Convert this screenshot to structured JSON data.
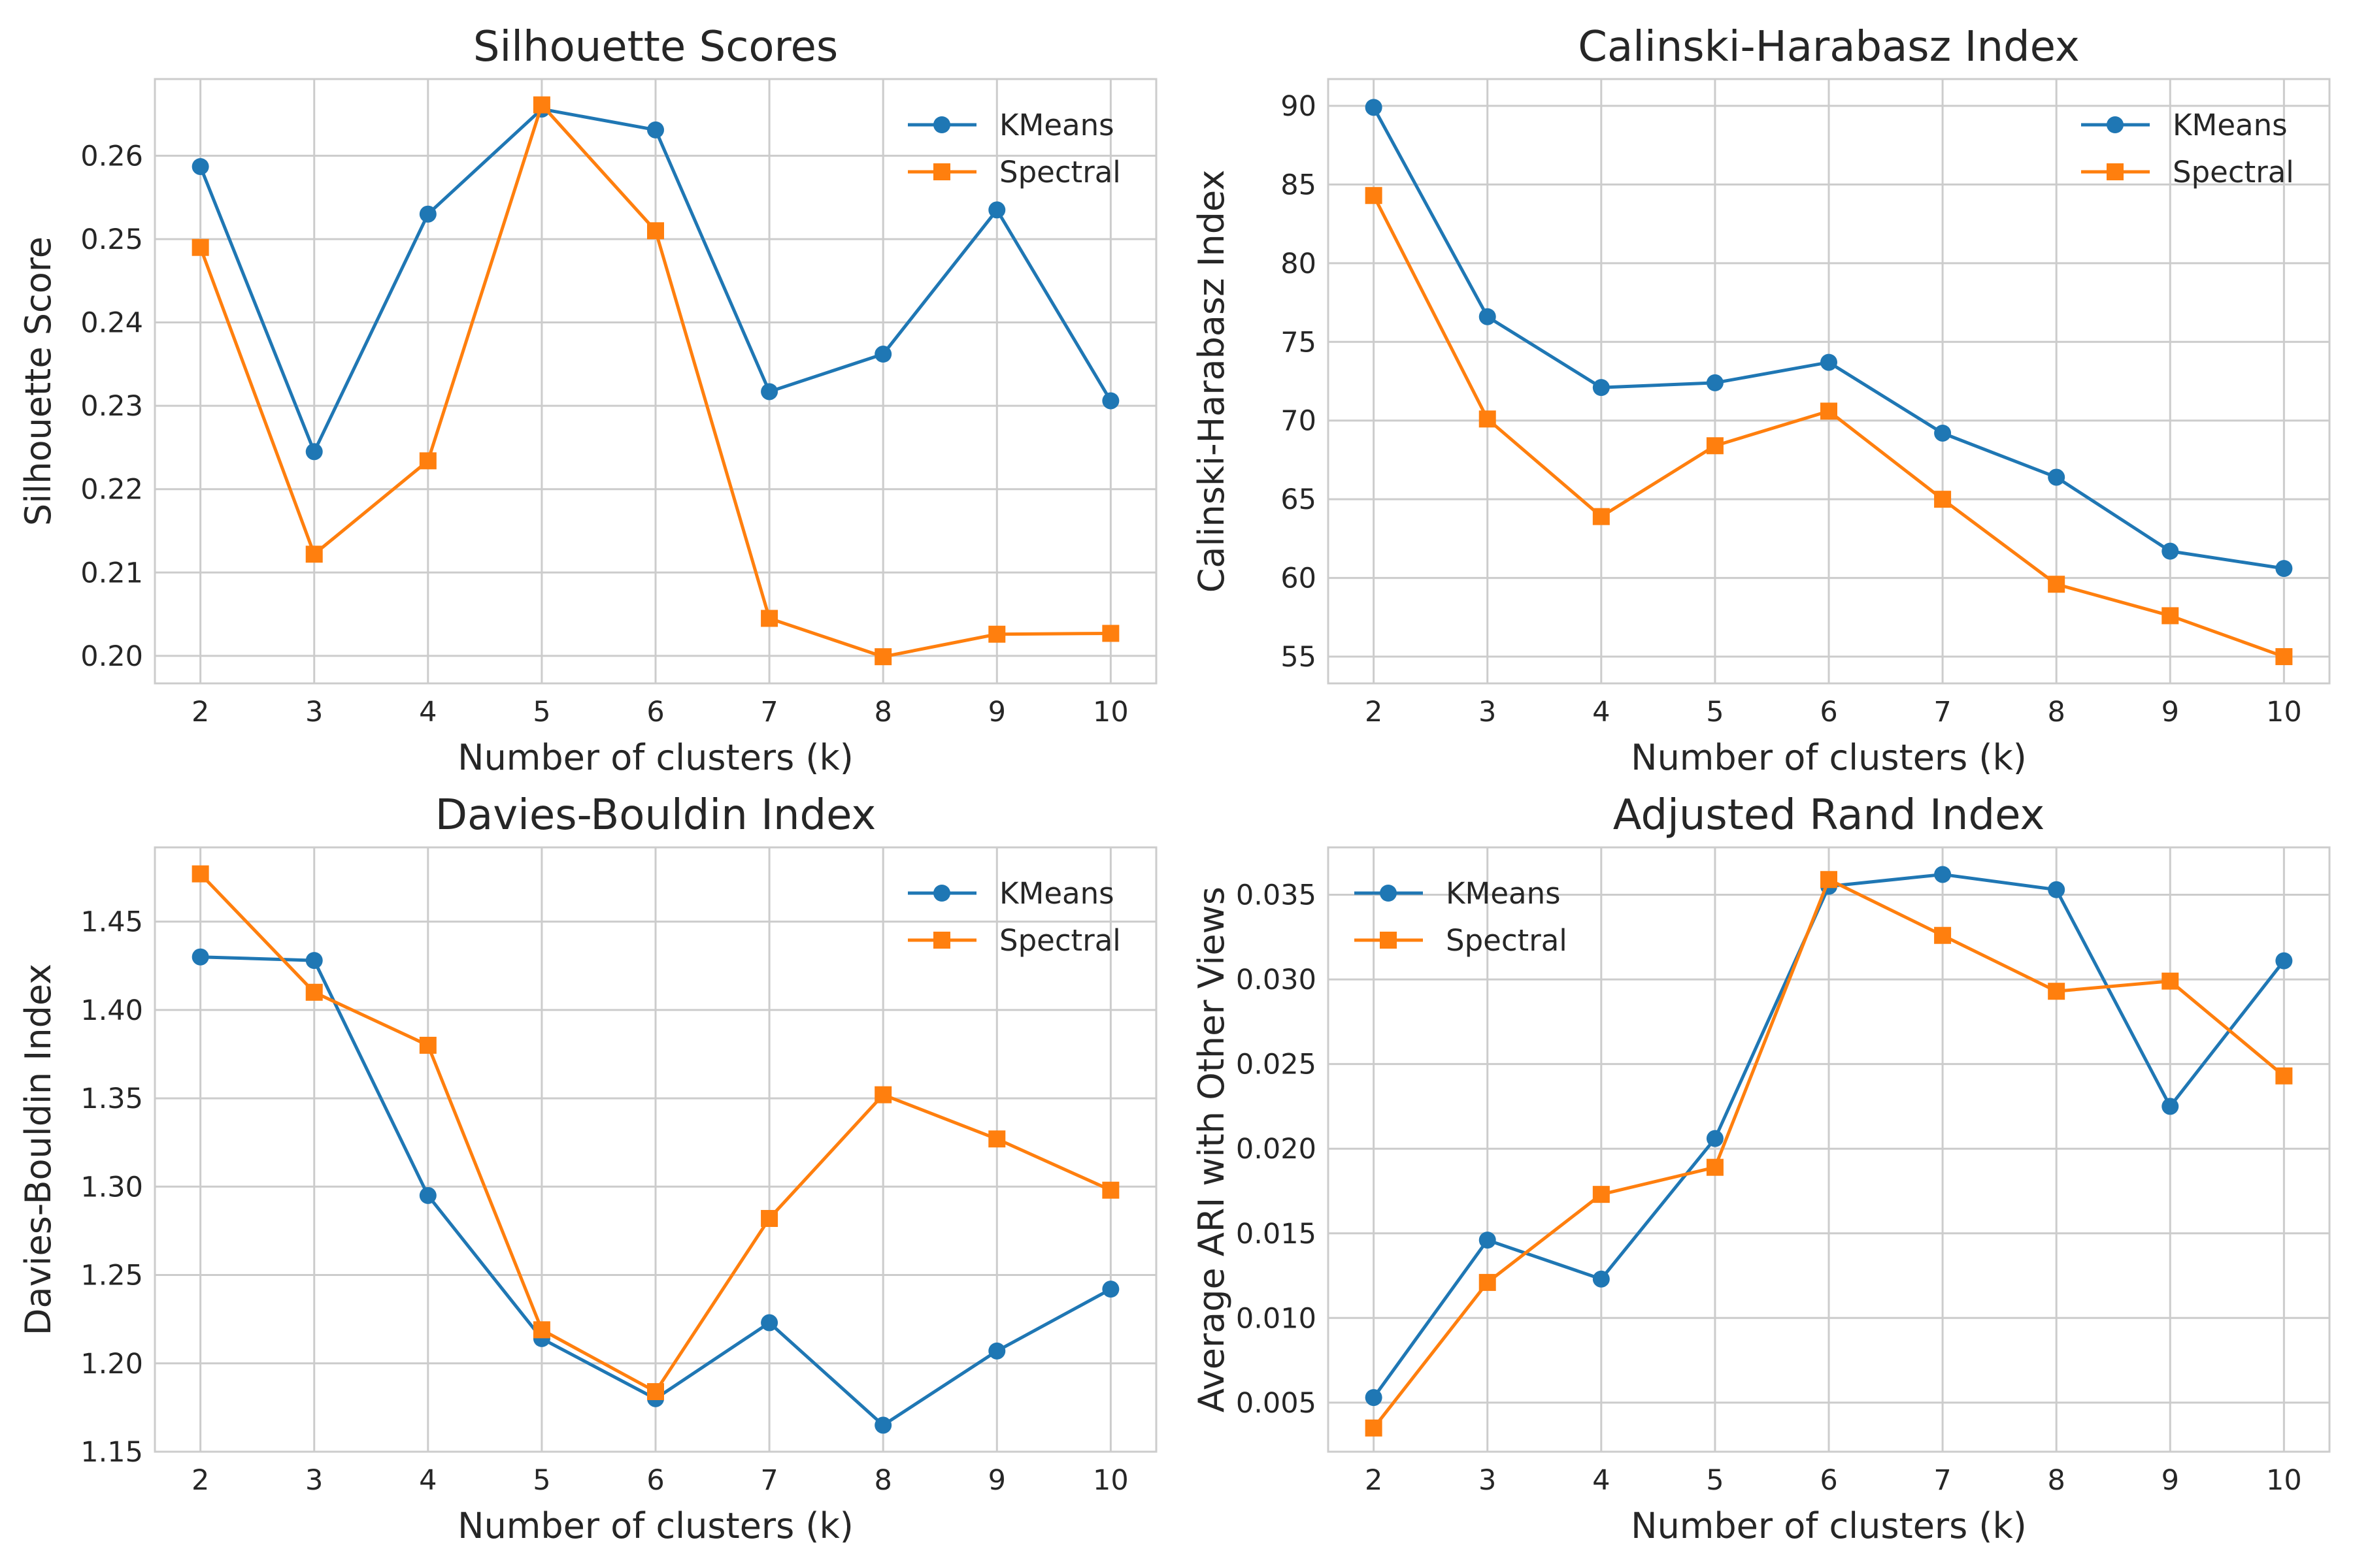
{
  "colors": {
    "kmeans": "#1f77b4",
    "spectral": "#ff7f0e",
    "grid": "#cccccc"
  },
  "chart_data": [
    {
      "type": "line",
      "title": "Silhouette Scores",
      "xlabel": "Number of clusters (k)",
      "ylabel": "Silhouette Score",
      "x": [
        2,
        3,
        4,
        5,
        6,
        7,
        8,
        9,
        10
      ],
      "xlim": [
        1.6,
        10.4
      ],
      "ylim": [
        0.1967,
        0.2692
      ],
      "yticks": [
        0.2,
        0.21,
        0.22,
        0.23,
        0.24,
        0.25,
        0.26
      ],
      "ytick_labels": [
        "0.20",
        "0.21",
        "0.22",
        "0.23",
        "0.24",
        "0.25",
        "0.26"
      ],
      "grid": true,
      "legend": "top-right",
      "series": [
        {
          "name": "KMeans",
          "marker": "circle",
          "values": [
            0.2587,
            0.2245,
            0.253,
            0.2656,
            0.2631,
            0.2317,
            0.2362,
            0.2535,
            0.2306
          ]
        },
        {
          "name": "Spectral",
          "marker": "square",
          "values": [
            0.249,
            0.2122,
            0.2234,
            0.2661,
            0.251,
            0.2045,
            0.1999,
            0.2026,
            0.2027
          ]
        }
      ]
    },
    {
      "type": "line",
      "title": "Calinski-Harabasz Index",
      "xlabel": "Number of clusters (k)",
      "ylabel": "Calinski-Harabasz Index",
      "x": [
        2,
        3,
        4,
        5,
        6,
        7,
        8,
        9,
        10
      ],
      "xlim": [
        1.6,
        10.4
      ],
      "ylim": [
        53.3,
        91.7
      ],
      "yticks": [
        55,
        60,
        65,
        70,
        75,
        80,
        85,
        90
      ],
      "ytick_labels": [
        "55",
        "60",
        "65",
        "70",
        "75",
        "80",
        "85",
        "90"
      ],
      "grid": true,
      "legend": "top-right",
      "series": [
        {
          "name": "KMeans",
          "marker": "circle",
          "values": [
            89.9,
            76.6,
            72.1,
            72.4,
            73.7,
            69.2,
            66.4,
            61.7,
            60.6
          ]
        },
        {
          "name": "Spectral",
          "marker": "square",
          "values": [
            84.3,
            70.1,
            63.9,
            68.4,
            70.6,
            65.0,
            59.6,
            57.6,
            55.0
          ]
        }
      ]
    },
    {
      "type": "line",
      "title": "Davies-Bouldin Index",
      "xlabel": "Number of clusters (k)",
      "ylabel": "Davies-Bouldin Index",
      "x": [
        2,
        3,
        4,
        5,
        6,
        7,
        8,
        9,
        10
      ],
      "xlim": [
        1.6,
        10.4
      ],
      "ylim": [
        1.15,
        1.492
      ],
      "yticks": [
        1.15,
        1.2,
        1.25,
        1.3,
        1.35,
        1.4,
        1.45
      ],
      "ytick_labels": [
        "1.15",
        "1.20",
        "1.25",
        "1.30",
        "1.35",
        "1.40",
        "1.45"
      ],
      "grid": true,
      "legend": "top-right",
      "series": [
        {
          "name": "KMeans",
          "marker": "circle",
          "values": [
            1.43,
            1.428,
            1.295,
            1.214,
            1.18,
            1.223,
            1.165,
            1.207,
            1.242
          ]
        },
        {
          "name": "Spectral",
          "marker": "square",
          "values": [
            1.477,
            1.41,
            1.38,
            1.219,
            1.184,
            1.282,
            1.352,
            1.327,
            1.298
          ]
        }
      ]
    },
    {
      "type": "line",
      "title": "Adjusted Rand Index",
      "xlabel": "Number of clusters (k)",
      "ylabel": "Average ARI with Other Views",
      "x": [
        2,
        3,
        4,
        5,
        6,
        7,
        8,
        9,
        10
      ],
      "xlim": [
        1.6,
        10.4
      ],
      "ylim": [
        0.0021,
        0.0378
      ],
      "yticks": [
        0.005,
        0.01,
        0.015,
        0.02,
        0.025,
        0.03,
        0.035
      ],
      "ytick_labels": [
        "0.005",
        "0.010",
        "0.015",
        "0.020",
        "0.025",
        "0.030",
        "0.035"
      ],
      "grid": true,
      "legend": "top-left",
      "series": [
        {
          "name": "KMeans",
          "marker": "circle",
          "values": [
            0.0053,
            0.0146,
            0.0123,
            0.0206,
            0.0355,
            0.0362,
            0.0353,
            0.0225,
            0.0311
          ]
        },
        {
          "name": "Spectral",
          "marker": "square",
          "values": [
            0.0035,
            0.0121,
            0.0173,
            0.0189,
            0.0359,
            0.0326,
            0.0293,
            0.0299,
            0.0243
          ]
        }
      ]
    }
  ]
}
